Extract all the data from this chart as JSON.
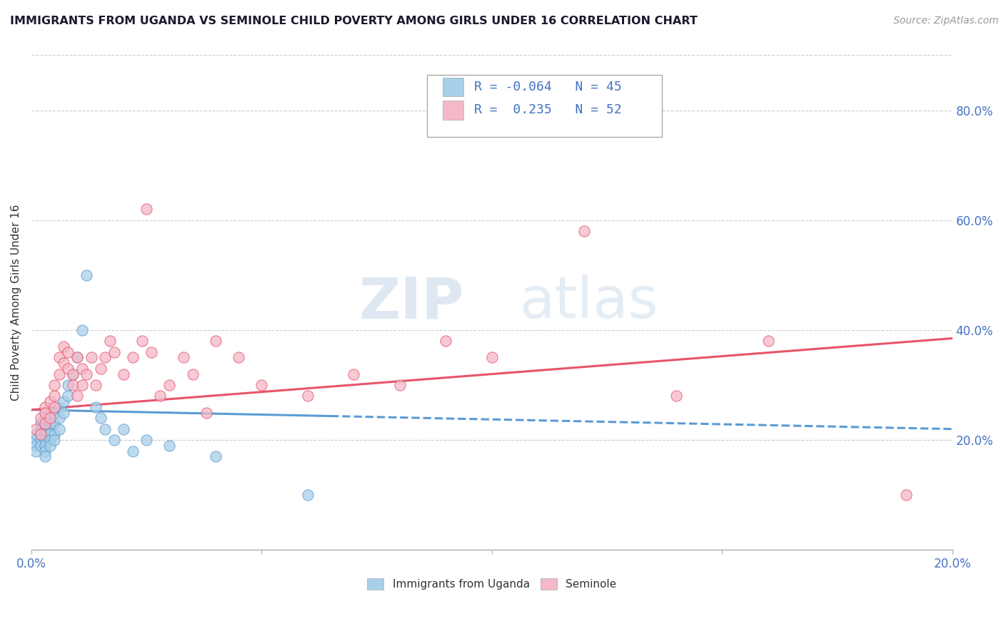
{
  "title": "IMMIGRANTS FROM UGANDA VS SEMINOLE CHILD POVERTY AMONG GIRLS UNDER 16 CORRELATION CHART",
  "source_text": "Source: ZipAtlas.com",
  "ylabel": "Child Poverty Among Girls Under 16",
  "xlim": [
    0.0,
    0.2
  ],
  "ylim": [
    0.0,
    0.9
  ],
  "x_tick_labels_edge": [
    "0.0%",
    "20.0%"
  ],
  "x_tick_vals_all": [
    0.0,
    0.05,
    0.1,
    0.15,
    0.2
  ],
  "y_tick_labels": [
    "20.0%",
    "40.0%",
    "60.0%",
    "80.0%"
  ],
  "y_tick_vals": [
    0.2,
    0.4,
    0.6,
    0.8
  ],
  "legend_r1": "R = -0.064",
  "legend_n1": "N = 45",
  "legend_r2": "R =  0.235",
  "legend_n2": "N = 52",
  "color_blue": "#a8cfe8",
  "color_pink": "#f4b8c8",
  "color_blue_line": "#5b9bd5",
  "color_pink_line": "#e8546a",
  "watermark_zip": "ZIP",
  "watermark_atlas": "atlas",
  "legend_text_color": "#4472c4",
  "blue_scatter_x": [
    0.001,
    0.001,
    0.001,
    0.001,
    0.002,
    0.002,
    0.002,
    0.002,
    0.002,
    0.003,
    0.003,
    0.003,
    0.003,
    0.003,
    0.003,
    0.004,
    0.004,
    0.004,
    0.004,
    0.004,
    0.005,
    0.005,
    0.005,
    0.005,
    0.006,
    0.006,
    0.006,
    0.007,
    0.007,
    0.008,
    0.008,
    0.009,
    0.01,
    0.011,
    0.012,
    0.014,
    0.015,
    0.016,
    0.018,
    0.02,
    0.022,
    0.025,
    0.03,
    0.04,
    0.06
  ],
  "blue_scatter_y": [
    0.2,
    0.21,
    0.19,
    0.18,
    0.22,
    0.21,
    0.2,
    0.19,
    0.23,
    0.24,
    0.22,
    0.2,
    0.19,
    0.18,
    0.17,
    0.23,
    0.22,
    0.21,
    0.2,
    0.19,
    0.25,
    0.23,
    0.21,
    0.2,
    0.26,
    0.24,
    0.22,
    0.27,
    0.25,
    0.3,
    0.28,
    0.32,
    0.35,
    0.4,
    0.5,
    0.26,
    0.24,
    0.22,
    0.2,
    0.22,
    0.18,
    0.2,
    0.19,
    0.17,
    0.1
  ],
  "pink_scatter_x": [
    0.001,
    0.002,
    0.002,
    0.003,
    0.003,
    0.003,
    0.004,
    0.004,
    0.005,
    0.005,
    0.005,
    0.006,
    0.006,
    0.007,
    0.007,
    0.008,
    0.008,
    0.009,
    0.009,
    0.01,
    0.01,
    0.011,
    0.011,
    0.012,
    0.013,
    0.014,
    0.015,
    0.016,
    0.017,
    0.018,
    0.02,
    0.022,
    0.024,
    0.025,
    0.026,
    0.028,
    0.03,
    0.033,
    0.035,
    0.038,
    0.04,
    0.045,
    0.05,
    0.06,
    0.07,
    0.08,
    0.09,
    0.1,
    0.12,
    0.14,
    0.16,
    0.19
  ],
  "pink_scatter_y": [
    0.22,
    0.24,
    0.21,
    0.26,
    0.23,
    0.25,
    0.27,
    0.24,
    0.28,
    0.26,
    0.3,
    0.32,
    0.35,
    0.34,
    0.37,
    0.33,
    0.36,
    0.3,
    0.32,
    0.35,
    0.28,
    0.3,
    0.33,
    0.32,
    0.35,
    0.3,
    0.33,
    0.35,
    0.38,
    0.36,
    0.32,
    0.35,
    0.38,
    0.62,
    0.36,
    0.28,
    0.3,
    0.35,
    0.32,
    0.25,
    0.38,
    0.35,
    0.3,
    0.28,
    0.32,
    0.3,
    0.38,
    0.35,
    0.58,
    0.28,
    0.38,
    0.1
  ]
}
